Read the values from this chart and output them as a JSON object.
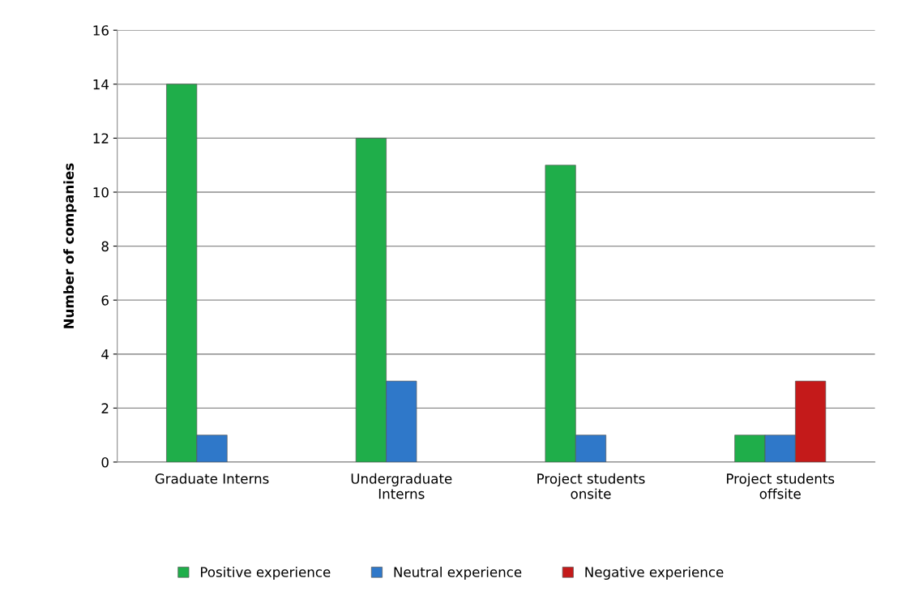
{
  "chart_data": {
    "type": "bar",
    "ylabel": "Number of companies",
    "categories": [
      "Graduate Interns",
      "Undergraduate\nInterns",
      "Project students\nonsite",
      "Project students\noffsite"
    ],
    "series": [
      {
        "name": "Positive experience",
        "color": "#1fae4a",
        "values": [
          14,
          12,
          11,
          1
        ]
      },
      {
        "name": "Neutral experience",
        "color": "#2f78c9",
        "values": [
          1,
          3,
          1,
          1
        ]
      },
      {
        "name": "Negative experience",
        "color": "#c41a1a",
        "values": [
          null,
          null,
          null,
          3
        ]
      }
    ],
    "ylim": [
      0,
      16
    ],
    "yticks": [
      0,
      2,
      4,
      6,
      8,
      10,
      12,
      14,
      16
    ],
    "grid": "y",
    "legend": "bottom"
  }
}
